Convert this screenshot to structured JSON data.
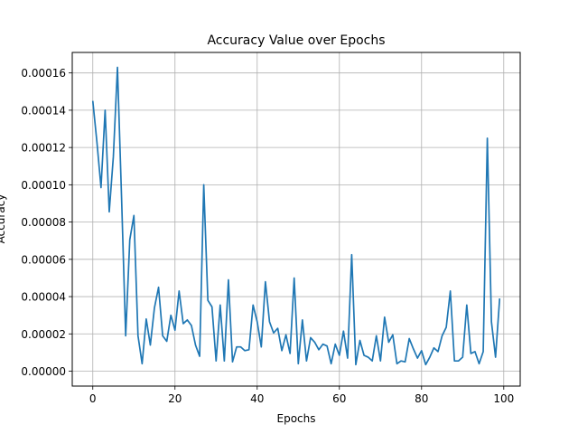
{
  "chart_data": {
    "type": "line",
    "title": "Accuracy Value over Epochs",
    "xlabel": "Epochs",
    "ylabel": "Accuracy",
    "xlim": [
      -5,
      104
    ],
    "ylim": [
      -8e-06,
      0.000171
    ],
    "x_ticks": [
      0,
      20,
      40,
      60,
      80,
      100
    ],
    "y_ticks": [
      0.0,
      2e-05,
      4e-05,
      6e-05,
      8e-05,
      0.0001,
      0.00012,
      0.00014,
      0.00016
    ],
    "x_tick_labels": [
      "0",
      "20",
      "40",
      "60",
      "80",
      "100"
    ],
    "y_tick_labels": [
      "0.00000",
      "0.00002",
      "0.00004",
      "0.00006",
      "0.00008",
      "0.00010",
      "0.00012",
      "0.00014",
      "0.00016"
    ],
    "grid": true,
    "line_color": "#1f77b4",
    "series": [
      {
        "values": [
          0.000145,
          0.000123,
          9.85e-05,
          0.00014,
          8.55e-05,
          0.000115,
          0.000163,
          9.3e-05,
          1.9e-05,
          7.05e-05,
          8.35e-05,
          1.9e-05,
          4e-06,
          2.8e-05,
          1.4e-05,
          3.4e-05,
          4.5e-05,
          1.9e-05,
          1.6e-05,
          3e-05,
          2.2e-05,
          4.3e-05,
          2.55e-05,
          2.75e-05,
          2.45e-05,
          1.4e-05,
          8e-06,
          0.0001,
          3.8e-05,
          3.45e-05,
          5.5e-06,
          3.55e-05,
          5.5e-06,
          4.9e-05,
          5e-06,
          1.3e-05,
          1.3e-05,
          1.1e-05,
          1.15e-05,
          3.55e-05,
          2.65e-05,
          1.3e-05,
          4.8e-05,
          2.65e-05,
          2.05e-05,
          2.3e-05,
          1.1e-05,
          1.95e-05,
          9.5e-06,
          5e-05,
          4e-06,
          2.75e-05,
          5.5e-06,
          1.8e-05,
          1.55e-05,
          1.15e-05,
          1.45e-05,
          1.35e-05,
          4e-06,
          1.45e-05,
          8.5e-06,
          2.15e-05,
          7e-06,
          6.25e-05,
          3.5e-06,
          1.65e-05,
          8.5e-06,
          7.5e-06,
          5.5e-06,
          1.9e-05,
          5.5e-06,
          2.9e-05,
          1.55e-05,
          1.95e-05,
          4e-06,
          5.5e-06,
          5e-06,
          1.75e-05,
          1.2e-05,
          7e-06,
          1.1e-05,
          3.5e-06,
          7.5e-06,
          1.25e-05,
          1.05e-05,
          1.9e-05,
          2.35e-05,
          4.3e-05,
          5.5e-06,
          5.5e-06,
          7.5e-06,
          3.55e-05,
          9.5e-06,
          1.05e-05,
          4e-06,
          1.05e-05,
          0.000125,
          2.65e-05,
          7.5e-06,
          3.9e-05
        ]
      }
    ]
  }
}
